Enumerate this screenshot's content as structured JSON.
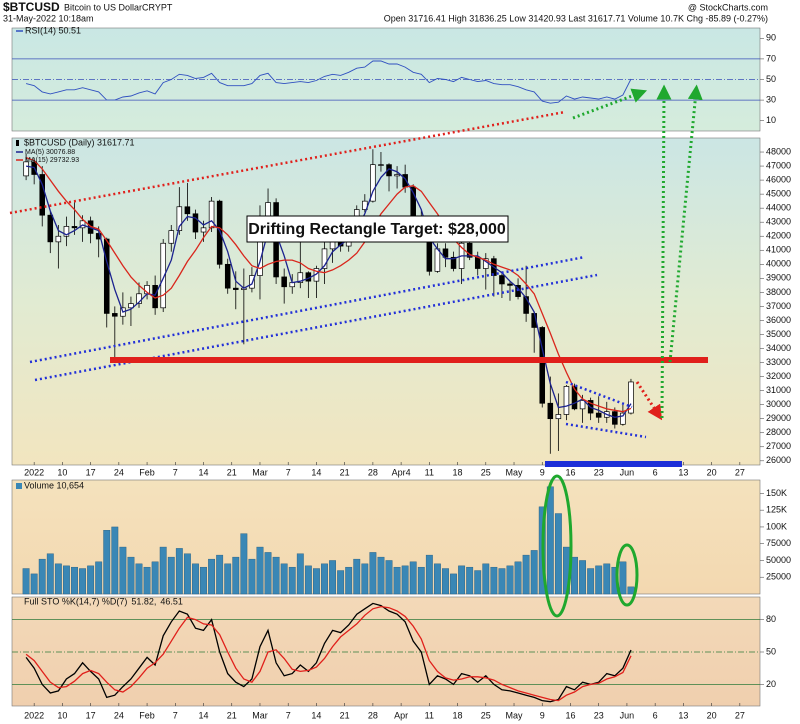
{
  "header": {
    "symbol": "$BTCUSD",
    "name": "Bitcoin to US Dollar",
    "exchange": "CRYPT",
    "copyright": "@ StockCharts.com",
    "datetime": "31-May-2022 10:18am",
    "quote": "Open 31716.41  High 31836.25  Low 31420.93  Last 31617.71  Volume 10.7K  Chg -85.89 (-0.27%)"
  },
  "annotation": "Drifting Rectangle Target: $28,000",
  "chart_data": [
    {
      "type": "line",
      "xlim": [
        -1.5,
        91
      ],
      "ylim": [
        0,
        100
      ],
      "yticks": [
        10,
        30,
        50,
        70,
        90
      ],
      "hlines": [
        30,
        50,
        70
      ],
      "hline_color": "#3a4fb8",
      "series": [
        {
          "name": "RSI(14) 50.51",
          "color": "#3050c0",
          "values": [
            46,
            44,
            38,
            36,
            38,
            40,
            40,
            42,
            40,
            38,
            30,
            30,
            33,
            34,
            37,
            39,
            36,
            47,
            50,
            55,
            54,
            51,
            52,
            56,
            47,
            44,
            44,
            44,
            46,
            54,
            56,
            47,
            46,
            47,
            48,
            47,
            49,
            53,
            55,
            54,
            57,
            61,
            62,
            68,
            68,
            65,
            65,
            62,
            57,
            55,
            47,
            51,
            50,
            48,
            52,
            50,
            48,
            49,
            46,
            45,
            45,
            43,
            40,
            38,
            29,
            27,
            28,
            34,
            31,
            33,
            32,
            31,
            33,
            31,
            35,
            50.51
          ]
        }
      ]
    },
    {
      "type": "candlestick",
      "title": "$BTCUSD (Daily) 31617.71",
      "xlim": [
        -1.5,
        91
      ],
      "ylim": [
        25700,
        49000
      ],
      "yticks": [
        26000,
        27000,
        28000,
        29000,
        30000,
        31000,
        32000,
        33000,
        34000,
        35000,
        36000,
        37000,
        38000,
        39000,
        40000,
        41000,
        42000,
        43000,
        44000,
        45000,
        46000,
        47000,
        48000
      ],
      "xticks": [
        {
          "value": 1,
          "label": "2022"
        },
        {
          "value": 4.5,
          "label": "10"
        },
        {
          "value": 8,
          "label": "17"
        },
        {
          "value": 11.5,
          "label": "24"
        },
        {
          "value": 15,
          "label": "Feb"
        },
        {
          "value": 18.5,
          "label": "7"
        },
        {
          "value": 22,
          "label": "14"
        },
        {
          "value": 25.5,
          "label": "21"
        },
        {
          "value": 29,
          "label": "Mar"
        },
        {
          "value": 32.5,
          "label": "7"
        },
        {
          "value": 36,
          "label": "14"
        },
        {
          "value": 39.5,
          "label": "21"
        },
        {
          "value": 43,
          "label": "28"
        },
        {
          "value": 46.5,
          "label": "Apr4"
        },
        {
          "value": 50,
          "label": "11"
        },
        {
          "value": 53.5,
          "label": "18"
        },
        {
          "value": 57,
          "label": "25"
        },
        {
          "value": 60.5,
          "label": "May"
        },
        {
          "value": 64,
          "label": "9"
        },
        {
          "value": 67.5,
          "label": "16"
        },
        {
          "value": 71,
          "label": "23"
        },
        {
          "value": 74.5,
          "label": "Jun"
        },
        {
          "value": 78,
          "label": "6"
        },
        {
          "value": 81.5,
          "label": "13"
        },
        {
          "value": 85,
          "label": "20"
        },
        {
          "value": 88.5,
          "label": "27"
        }
      ],
      "candle_color": "#000000",
      "open": [
        46300,
        47300,
        46400,
        43500,
        41600,
        42000,
        42700,
        42600,
        43100,
        42200,
        41800,
        36500,
        36300,
        36900,
        37200,
        37900,
        38500,
        36900,
        41500,
        42400,
        44100,
        43600,
        42300,
        42600,
        44500,
        40000,
        38300,
        38200,
        38300,
        39200,
        43200,
        44400,
        39100,
        38400,
        38700,
        39400,
        38800,
        39700,
        41100,
        41800,
        41300,
        42400,
        43900,
        44500,
        47100,
        47100,
        46300,
        46400,
        45500,
        43400,
        42800,
        39500,
        41100,
        40500,
        39700,
        41500,
        40500,
        39700,
        40400,
        39200,
        38600,
        38500,
        37700,
        36500,
        35500,
        30100,
        29000,
        29300,
        31300,
        29700,
        30300,
        29400,
        29100,
        29500,
        28600,
        29400
      ],
      "high": [
        47900,
        47600,
        47000,
        43800,
        42800,
        43400,
        44400,
        43500,
        43400,
        42700,
        41900,
        37000,
        38000,
        37700,
        38700,
        38800,
        39200,
        41800,
        42800,
        45500,
        45800,
        43900,
        43100,
        44800,
        44600,
        40400,
        39500,
        39700,
        39800,
        44200,
        45400,
        44700,
        39700,
        39300,
        42000,
        39500,
        39900,
        41700,
        42300,
        42400,
        43300,
        44200,
        45000,
        48200,
        48000,
        47200,
        47000,
        47100,
        45700,
        43900,
        42900,
        41500,
        41500,
        40900,
        41700,
        42900,
        40900,
        40800,
        40600,
        39500,
        38800,
        39000,
        39900,
        36600,
        35600,
        32000,
        30800,
        31400,
        31500,
        30700,
        30500,
        30600,
        30200,
        29800,
        30000,
        31836.25
      ],
      "low": [
        46000,
        45700,
        42700,
        40800,
        39700,
        41300,
        42100,
        41600,
        41500,
        40500,
        35500,
        33000,
        35700,
        35600,
        36900,
        37500,
        36400,
        36600,
        40900,
        42100,
        43100,
        41800,
        41600,
        42300,
        39700,
        37900,
        36800,
        34300,
        38000,
        37500,
        42800,
        38600,
        37200,
        37900,
        38300,
        37600,
        37600,
        38600,
        40100,
        40900,
        40900,
        42000,
        43700,
        44400,
        46600,
        45200,
        45400,
        45100,
        43000,
        42100,
        39200,
        39400,
        39800,
        39500,
        38600,
        40300,
        39200,
        38200,
        37700,
        37600,
        37400,
        37500,
        35900,
        33700,
        29800,
        26500,
        26700,
        28900,
        29600,
        28700,
        28900,
        28700,
        28700,
        28300,
        28500,
        29300
      ],
      "close": [
        47300,
        46400,
        43500,
        41600,
        42000,
        42700,
        42600,
        43100,
        42200,
        41800,
        36500,
        36300,
        36900,
        37200,
        37900,
        38500,
        36900,
        41500,
        42400,
        44100,
        43600,
        42300,
        42600,
        44500,
        40000,
        38300,
        38200,
        38300,
        39200,
        43200,
        44400,
        39100,
        38400,
        38700,
        39400,
        38800,
        39700,
        41100,
        41800,
        41300,
        42400,
        43900,
        44500,
        47100,
        47100,
        46300,
        46400,
        45500,
        43400,
        42800,
        39500,
        41100,
        40500,
        39700,
        41500,
        40500,
        39700,
        40400,
        39200,
        38600,
        38500,
        37700,
        36500,
        35500,
        30100,
        29000,
        29300,
        31300,
        29700,
        30300,
        29400,
        29100,
        29500,
        28600,
        29400,
        31617.71
      ],
      "series": [
        {
          "name": "MA(5) 30076.88",
          "color": "#1b228f",
          "values": [
            47000,
            46900,
            45700,
            43800,
            42400,
            42100,
            42400,
            42800,
            42600,
            42400,
            40200,
            38200,
            36600,
            36800,
            37300,
            37900,
            37800,
            39000,
            40300,
            42700,
            43400,
            43300,
            42800,
            43100,
            42400,
            40900,
            38800,
            38300,
            38600,
            40200,
            42300,
            42200,
            40600,
            38700,
            38800,
            39000,
            39300,
            39900,
            40900,
            41400,
            41800,
            42500,
            43600,
            45200,
            46200,
            46800,
            46600,
            46100,
            45100,
            43900,
            41900,
            41100,
            40400,
            40400,
            40600,
            40600,
            40600,
            40200,
            39800,
            39400,
            38800,
            38300,
            37600,
            36600,
            34000,
            31500,
            29800,
            29900,
            30100,
            30400,
            29800,
            29600,
            29300,
            29100,
            29200,
            30076.88
          ]
        },
        {
          "name": "MA(15) 29732.93",
          "color": "#d9261c",
          "values": [
            47600,
            47400,
            46800,
            46000,
            45200,
            44500,
            43900,
            43200,
            42700,
            42500,
            41700,
            40800,
            39900,
            39100,
            38500,
            38000,
            37600,
            37800,
            38300,
            39200,
            40200,
            41000,
            41900,
            42700,
            42600,
            42100,
            41400,
            40600,
            39900,
            39700,
            40000,
            40200,
            40300,
            40300,
            40100,
            39700,
            39500,
            39400,
            39600,
            39900,
            40300,
            40800,
            41600,
            42600,
            43600,
            44300,
            45000,
            45500,
            45600,
            45200,
            44400,
            43600,
            42700,
            41800,
            41200,
            40700,
            40500,
            40300,
            40000,
            39800,
            39600,
            39200,
            38600,
            37900,
            36500,
            35100,
            33600,
            32300,
            31100,
            30400,
            30100,
            29900,
            29700,
            29600,
            29500,
            29732.93
          ]
        }
      ]
    },
    {
      "type": "bar",
      "title": "Volume 10,654",
      "color": "#3a87b5",
      "xlim": [
        -1.5,
        91
      ],
      "ylim": [
        0,
        170000
      ],
      "yticks": [
        25000,
        50000,
        75000,
        {
          "value": 100000,
          "label": "100K"
        },
        {
          "value": 125000,
          "label": "125K"
        },
        {
          "value": 150000,
          "label": "150K"
        }
      ],
      "values": [
        38000,
        30000,
        52000,
        60000,
        45000,
        42000,
        40000,
        38000,
        42000,
        48000,
        95000,
        100000,
        70000,
        55000,
        45000,
        40000,
        48000,
        70000,
        55000,
        68000,
        60000,
        45000,
        40000,
        52000,
        58000,
        45000,
        55000,
        90000,
        52000,
        70000,
        62000,
        55000,
        45000,
        40000,
        60000,
        42000,
        38000,
        45000,
        50000,
        35000,
        40000,
        52000,
        45000,
        62000,
        55000,
        50000,
        40000,
        42000,
        48000,
        40000,
        58000,
        45000,
        38000,
        30000,
        42000,
        40000,
        35000,
        45000,
        40000,
        38000,
        42000,
        48000,
        58000,
        65000,
        130000,
        160000,
        120000,
        70000,
        55000,
        50000,
        38000,
        42000,
        45000,
        40000,
        48000,
        10654
      ]
    },
    {
      "type": "line",
      "title": "Full STO %K(14,7) %D(7)",
      "xlim": [
        -1.5,
        91
      ],
      "ylim": [
        0,
        100
      ],
      "yticks": [
        20,
        50,
        80
      ],
      "hlines": [
        20,
        50,
        80
      ],
      "hline_color": "#2f7a3a",
      "xticks": [
        {
          "value": 1,
          "label": "2022"
        },
        {
          "value": 4.5,
          "label": "10"
        },
        {
          "value": 8,
          "label": "17"
        },
        {
          "value": 11.5,
          "label": "24"
        },
        {
          "value": 15,
          "label": "Feb"
        },
        {
          "value": 18.5,
          "label": "7"
        },
        {
          "value": 22,
          "label": "14"
        },
        {
          "value": 25.5,
          "label": "21"
        },
        {
          "value": 29,
          "label": "Mar"
        },
        {
          "value": 32.5,
          "label": "7"
        },
        {
          "value": 36,
          "label": "14"
        },
        {
          "value": 39.5,
          "label": "21"
        },
        {
          "value": 43,
          "label": "28"
        },
        {
          "value": 46.5,
          "label": "Apr"
        },
        {
          "value": 50,
          "label": "11"
        },
        {
          "value": 53.5,
          "label": "18"
        },
        {
          "value": 57,
          "label": "25"
        },
        {
          "value": 60.5,
          "label": "May"
        },
        {
          "value": 64,
          "label": "9"
        },
        {
          "value": 67.5,
          "label": "16"
        },
        {
          "value": 71,
          "label": "23"
        },
        {
          "value": 74.5,
          "label": "Jun"
        },
        {
          "value": 78,
          "label": "6"
        },
        {
          "value": 81.5,
          "label": "13"
        },
        {
          "value": 85,
          "label": "20"
        },
        {
          "value": 88.5,
          "label": "27"
        }
      ],
      "series": [
        {
          "name": "51.82,",
          "color": "#000000",
          "values": [
            45,
            35,
            20,
            12,
            14,
            25,
            30,
            40,
            32,
            25,
            8,
            10,
            18,
            25,
            35,
            45,
            38,
            65,
            78,
            88,
            85,
            72,
            70,
            80,
            50,
            30,
            22,
            18,
            25,
            55,
            70,
            40,
            28,
            30,
            38,
            32,
            40,
            58,
            70,
            68,
            75,
            85,
            90,
            95,
            93,
            88,
            85,
            78,
            60,
            50,
            20,
            28,
            25,
            20,
            30,
            28,
            22,
            28,
            20,
            15,
            14,
            12,
            10,
            8,
            5,
            4,
            6,
            18,
            15,
            22,
            20,
            22,
            30,
            28,
            35,
            51.82
          ]
        },
        {
          "name": "46.51",
          "color": "#e0201b",
          "values": [
            48,
            42,
            32,
            22,
            17,
            18,
            23,
            30,
            33,
            30,
            22,
            15,
            13,
            18,
            26,
            35,
            40,
            48,
            60,
            72,
            82,
            80,
            76,
            75,
            66,
            50,
            35,
            25,
            22,
            32,
            50,
            52,
            44,
            34,
            32,
            33,
            36,
            44,
            55,
            64,
            70,
            76,
            84,
            90,
            92,
            91,
            88,
            83,
            74,
            62,
            42,
            32,
            26,
            24,
            25,
            27,
            27,
            26,
            24,
            20,
            17,
            14,
            12,
            10,
            8,
            6,
            5,
            10,
            13,
            18,
            20,
            21,
            25,
            27,
            31,
            46.51
          ]
        }
      ]
    }
  ]
}
